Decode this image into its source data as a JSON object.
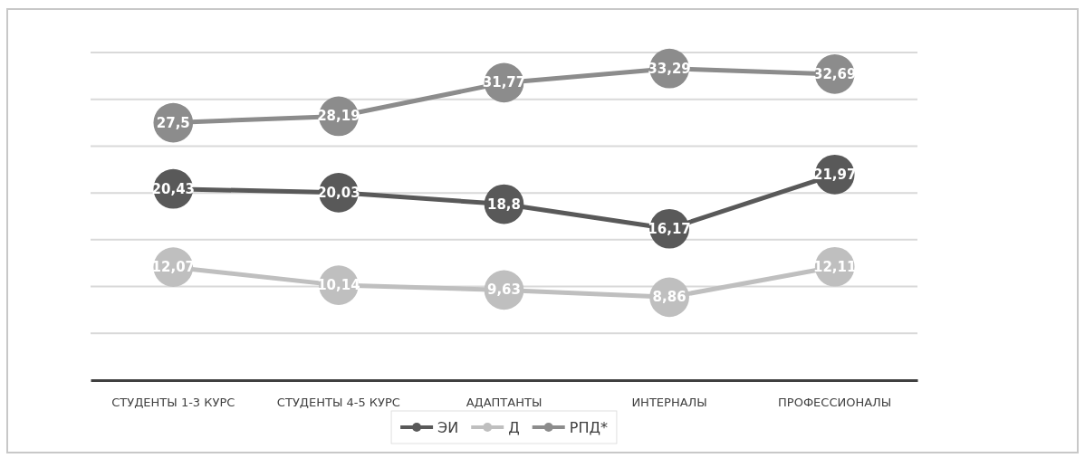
{
  "chart_data": {
    "type": "line",
    "categories": [
      "СТУДЕНТЫ 1-3 КУРС",
      "СТУДЕНТЫ 4-5 КУРС",
      "АДАПТАНТЫ",
      "ИНТЕРНАЛЫ",
      "ПРОФЕССИОНАЛЫ"
    ],
    "series": [
      {
        "name": "ЭИ",
        "color": "#595959",
        "values": [
          20.43,
          20.03,
          18.8,
          16.17,
          21.97
        ],
        "value_labels": [
          "20,43",
          "20,03",
          "18,8",
          "16,17",
          "21,97"
        ]
      },
      {
        "name": "Д",
        "color": "#bfbfbf",
        "values": [
          12.07,
          10.14,
          9.63,
          8.86,
          12.11
        ],
        "value_labels": [
          "12,07",
          "10,14",
          "9,63",
          "8,86",
          "12,11"
        ]
      },
      {
        "name": "РПД*",
        "color": "#8c8c8c",
        "values": [
          27.5,
          28.19,
          31.77,
          33.29,
          32.69
        ],
        "value_labels": [
          "27,5",
          "28,19",
          "31,77",
          "33,29",
          "32,69"
        ]
      }
    ],
    "ylim": [
      0,
      35
    ],
    "yticks": [
      {
        "value": 0,
        "label": null
      },
      {
        "value": 5,
        "label": null
      },
      {
        "value": 10,
        "label": null
      },
      {
        "value": 15,
        "label": null
      },
      {
        "value": 20,
        "label": null
      },
      {
        "value": 25,
        "label": null
      },
      {
        "value": 30,
        "label": null
      },
      {
        "value": 35,
        "label": null
      }
    ],
    "tick_labels": "x",
    "grid": "y",
    "legend": "bottom",
    "marker": "circle",
    "line_style": "solid"
  }
}
